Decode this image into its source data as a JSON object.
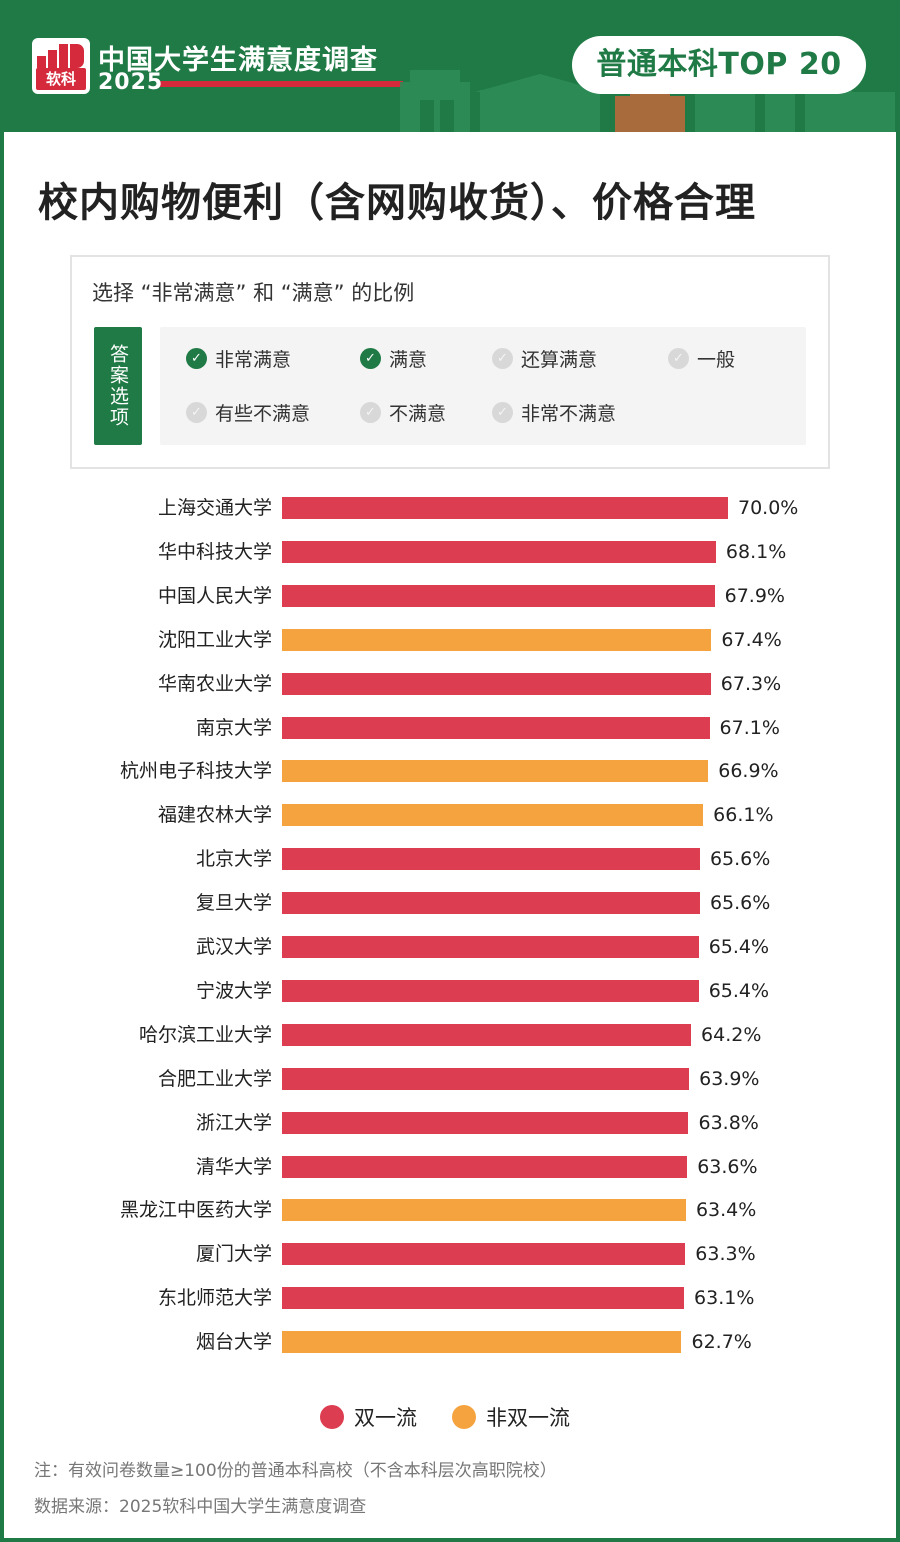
{
  "header": {
    "logo_text": "软科",
    "brand_title": "中国大学生满意度调查",
    "brand_year": "2025",
    "badge": "普通本科TOP 20"
  },
  "title": "校内购物便利（含网购收货）、价格合理",
  "legend_box": {
    "heading": "选择 “非常满意” 和 “满意” 的比例",
    "tag": "答案选项",
    "options": [
      {
        "label": "非常满意",
        "checked": true
      },
      {
        "label": "满意",
        "checked": true
      },
      {
        "label": "还算满意",
        "checked": false
      },
      {
        "label": "一般",
        "checked": false
      },
      {
        "label": "有些不满意",
        "checked": false
      },
      {
        "label": "不满意",
        "checked": false
      },
      {
        "label": "非常不满意",
        "checked": false
      }
    ]
  },
  "colors": {
    "brand_green": "#1f7a45",
    "double_first_class": "#dc3d50",
    "non_double_first_class": "#f5a33e"
  },
  "chart_data": {
    "type": "bar",
    "orientation": "horizontal",
    "value_suffix": "%",
    "xlim": [
      0,
      70
    ],
    "categories": [
      "上海交通大学",
      "华中科技大学",
      "中国人民大学",
      "沈阳工业大学",
      "华南农业大学",
      "南京大学",
      "杭州电子科技大学",
      "福建农林大学",
      "北京大学",
      "复旦大学",
      "武汉大学",
      "宁波大学",
      "哈尔滨工业大学",
      "合肥工业大学",
      "浙江大学",
      "清华大学",
      "黑龙江中医药大学",
      "厦门大学",
      "东北师范大学",
      "烟台大学"
    ],
    "values": [
      70.0,
      68.1,
      67.9,
      67.4,
      67.3,
      67.1,
      66.9,
      66.1,
      65.6,
      65.6,
      65.4,
      65.4,
      64.2,
      63.9,
      63.8,
      63.6,
      63.4,
      63.3,
      63.1,
      62.7
    ],
    "value_labels": [
      "70.0%",
      "68.1%",
      "67.9%",
      "67.4%",
      "67.3%",
      "67.1%",
      "66.9%",
      "66.1%",
      "65.6%",
      "65.6%",
      "65.4%",
      "65.4%",
      "64.2%",
      "63.9%",
      "63.8%",
      "63.6%",
      "63.4%",
      "63.3%",
      "63.1%",
      "62.7%"
    ],
    "group": [
      "双一流",
      "双一流",
      "双一流",
      "非双一流",
      "双一流",
      "双一流",
      "非双一流",
      "非双一流",
      "双一流",
      "双一流",
      "双一流",
      "双一流",
      "双一流",
      "双一流",
      "双一流",
      "双一流",
      "非双一流",
      "双一流",
      "双一流",
      "非双一流"
    ],
    "legend": [
      {
        "name": "双一流",
        "color": "#dc3d50"
      },
      {
        "name": "非双一流",
        "color": "#f5a33e"
      }
    ],
    "legend_position": "bottom"
  },
  "notes": {
    "note": "注：有效问卷数量≥100份的普通本科高校（不含本科层次高职院校）",
    "source": "数据来源：2025软科中国大学生满意度调查"
  }
}
